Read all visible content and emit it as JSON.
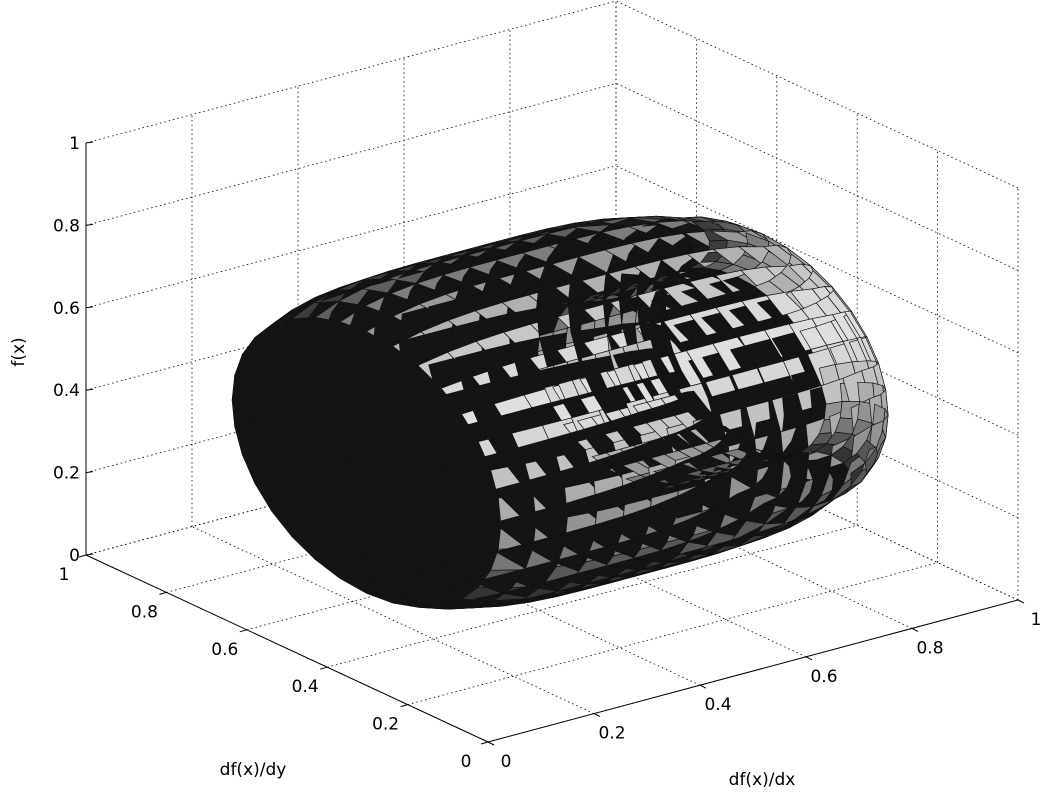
{
  "chart_data": {
    "type": "surface3d",
    "title": "",
    "xlabel": "df(x)/dx",
    "ylabel": "df(x)/dy",
    "zlabel": "f(x)",
    "xlim": [
      0,
      1
    ],
    "ylim": [
      0,
      1
    ],
    "zlim": [
      0,
      1
    ],
    "x_ticks": [
      "0",
      "0.2",
      "0.4",
      "0.6",
      "0.8",
      "1"
    ],
    "y_ticks": [
      "0",
      "0.2",
      "0.4",
      "0.6",
      "0.8",
      "1"
    ],
    "z_ticks": [
      "0",
      "0.2",
      "0.4",
      "0.6",
      "0.8",
      "1"
    ],
    "grid": true,
    "surface": {
      "shape": "closed tube",
      "shading": "grayscale",
      "center": [
        0.5,
        0.5,
        0.4
      ],
      "tube_axis": "x",
      "tube_half_length": 0.35,
      "outer_radius": 0.38,
      "inner_radius": 0.22
    }
  }
}
